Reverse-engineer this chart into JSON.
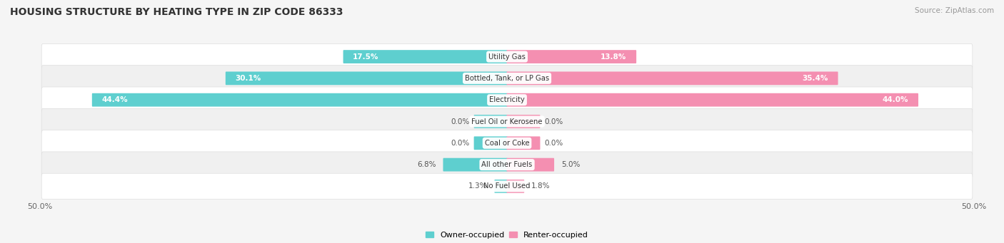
{
  "title": "HOUSING STRUCTURE BY HEATING TYPE IN ZIP CODE 86333",
  "source": "Source: ZipAtlas.com",
  "categories": [
    "Utility Gas",
    "Bottled, Tank, or LP Gas",
    "Electricity",
    "Fuel Oil or Kerosene",
    "Coal or Coke",
    "All other Fuels",
    "No Fuel Used"
  ],
  "owner_values": [
    17.5,
    30.1,
    44.4,
    0.0,
    0.0,
    6.8,
    1.3
  ],
  "renter_values": [
    13.8,
    35.4,
    44.0,
    0.0,
    0.0,
    5.0,
    1.8
  ],
  "owner_color": "#5ECFCF",
  "renter_color": "#F48FB1",
  "axis_limit": 50.0,
  "bar_height": 0.52,
  "zero_stub": 3.5,
  "background_color": "#f5f5f5",
  "row_bg_colors": [
    "#ffffff",
    "#f0f0f0"
  ]
}
